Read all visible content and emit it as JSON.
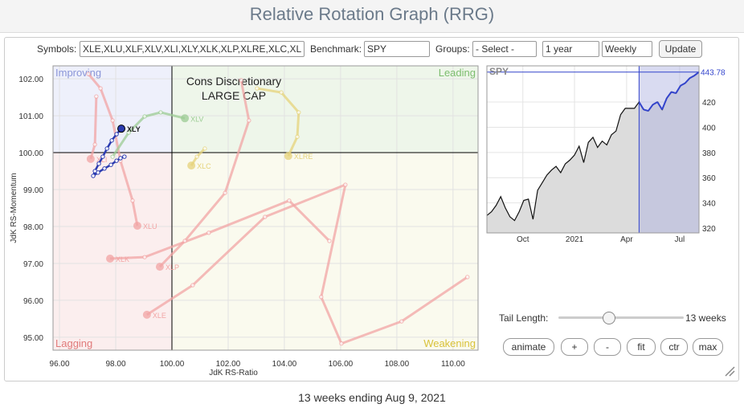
{
  "header": {
    "title": "Relative Rotation Graph (RRG)"
  },
  "controls": {
    "symbols_label": "Symbols:",
    "symbols": "XLE,XLU,XLF,XLV,XLI,XLY,XLK,XLP,XLRE,XLC,XL",
    "benchmark_label": "Benchmark:",
    "benchmark": "SPY",
    "groups_label": "Groups:",
    "groups": "- Select -",
    "period": "1 year",
    "frequency": "Weekly",
    "update": "Update"
  },
  "rrg": {
    "title": "Cons Discretionary",
    "subtitle": "LARGE CAP",
    "quadrants": {
      "improving": "Improving",
      "leading": "Leading",
      "lagging": "Lagging",
      "weakening": "Weakening"
    },
    "x_label": "JdK RS-Ratio",
    "y_label": "JdK RS-Momentum",
    "center": 100,
    "xlim": [
      95.77,
      110.89
    ],
    "ylim": [
      94.65,
      102.35
    ],
    "xticks": [
      {
        "value": 96,
        "label": "96.00"
      },
      {
        "value": 98,
        "label": "98.00"
      },
      {
        "value": 100,
        "label": "100.00"
      },
      {
        "value": 102,
        "label": "102.00"
      },
      {
        "value": 104,
        "label": "104.00"
      },
      {
        "value": 106,
        "label": "106.00"
      },
      {
        "value": 108,
        "label": "108.00"
      },
      {
        "value": 110,
        "label": "110.00"
      }
    ],
    "yticks": [
      {
        "value": 95,
        "label": "95.00"
      },
      {
        "value": 96,
        "label": "96.00"
      },
      {
        "value": 97,
        "label": "97.00"
      },
      {
        "value": 98,
        "label": "98.00"
      },
      {
        "value": 99,
        "label": "99.00"
      },
      {
        "value": 100,
        "label": "100.00"
      },
      {
        "value": 101,
        "label": "101.00"
      },
      {
        "value": 102,
        "label": "102.00"
      }
    ],
    "series": [
      {
        "name": "XLU",
        "color": "#f2a4a4",
        "x": [
          97.03,
          97.46,
          97.89,
          98.17,
          98.6,
          98.77
        ],
        "y": [
          102.13,
          101.74,
          100.87,
          99.78,
          98.7,
          98.02
        ]
      },
      {
        "name": "XLK",
        "color": "#f2a4a4",
        "x": [
          105.6,
          104.17,
          101.31,
          99.03,
          97.8
        ],
        "y": [
          97.61,
          98.7,
          97.83,
          97.17,
          97.13
        ]
      },
      {
        "name": "XLP",
        "color": "#f2a4a4",
        "x": [
          102.46,
          102.74,
          101.89,
          100.46,
          99.57
        ],
        "y": [
          101.96,
          100.87,
          98.91,
          97.61,
          96.91
        ]
      },
      {
        "name": "XLE",
        "color": "#f2a4a4",
        "x": [
          110.51,
          108.17,
          106.03,
          105.31,
          106.17,
          103.31,
          100.74,
          99.11
        ],
        "y": [
          96.63,
          95.43,
          94.83,
          96.09,
          99.13,
          98.26,
          96.41,
          95.61
        ]
      },
      {
        "name": "XLI",
        "color": "#f2a4a4",
        "x": [
          97.31,
          97.26,
          97.11
        ],
        "y": [
          101.52,
          100.22,
          99.83
        ]
      },
      {
        "name": "XLV",
        "color": "#9ccc94",
        "x": [
          97.89,
          98.46,
          99.03,
          99.6,
          100.46
        ],
        "y": [
          99.89,
          100.54,
          100.98,
          101.09,
          100.93
        ]
      },
      {
        "name": "XLC",
        "color": "#e6d37a",
        "x": [
          101.17,
          100.89,
          100.69
        ],
        "y": [
          100.11,
          99.89,
          99.65
        ]
      },
      {
        "name": "XLRE",
        "color": "#e6d37a",
        "x": [
          103.03,
          103.89,
          104.51,
          104.46,
          104.14
        ],
        "y": [
          101.74,
          101.63,
          101.09,
          100.43,
          99.91
        ]
      },
      {
        "name": "XLY",
        "color": "#2b3bb0",
        "highlight": true,
        "x": [
          98.31,
          98.17,
          98.03,
          97.83,
          97.6,
          97.37,
          97.2,
          97.26,
          97.4,
          97.54,
          97.69,
          97.86,
          98.03,
          98.2
        ],
        "y": [
          99.89,
          99.85,
          99.78,
          99.67,
          99.57,
          99.46,
          99.37,
          99.5,
          99.7,
          99.89,
          100.11,
          100.33,
          100.5,
          100.65
        ]
      }
    ]
  },
  "benchmark_chart": {
    "name": "SPY",
    "xlim": [
      0,
      46
    ],
    "ylim": [
      316.2,
      448.7
    ],
    "xticks": [
      {
        "value": 7.8,
        "label": "Oct"
      },
      {
        "value": 19,
        "label": "2021"
      },
      {
        "value": 30.3,
        "label": "Apr"
      },
      {
        "value": 41.8,
        "label": "Jul"
      }
    ],
    "yticks": [
      320,
      340,
      360,
      380,
      400,
      420
    ],
    "values": [
      330,
      333,
      338,
      345,
      336,
      329,
      326,
      333,
      342,
      343,
      327,
      350,
      356,
      362,
      366,
      369,
      364,
      371,
      374,
      378,
      385,
      372,
      388,
      392,
      384,
      389,
      386,
      394,
      397,
      410,
      415,
      415,
      415,
      420,
      414,
      413,
      418,
      420,
      414,
      423,
      428,
      427,
      433,
      435,
      439,
      441,
      443.78
    ]
  },
  "tail_control": {
    "label": "Tail Length:",
    "weeks": 13,
    "weeks_label": "13 weeks"
  },
  "buttons": [
    "animate",
    "+",
    "-",
    "fit",
    "ctr",
    "max"
  ],
  "footer": "13 weeks ending Aug 9, 2021"
}
